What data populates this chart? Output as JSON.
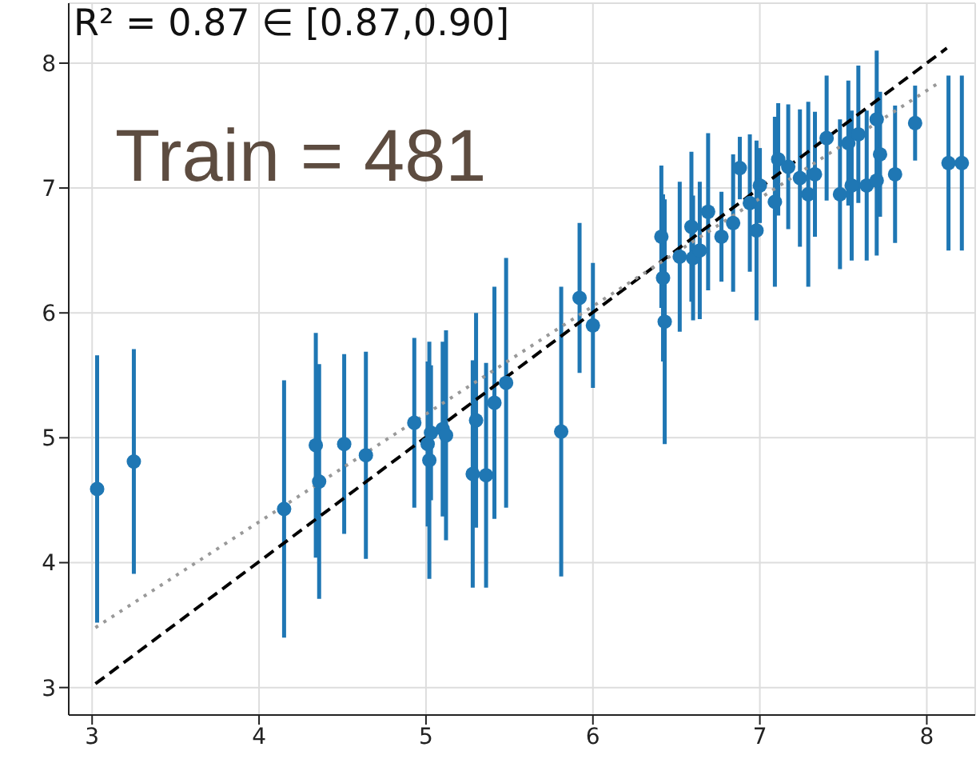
{
  "chart_data": {
    "type": "scatter",
    "annotations": [
      "R² = 0.87 ∈ [0.87,0.90]",
      "Train = 481"
    ],
    "xlim": [
      2.86,
      8.29
    ],
    "ylim": [
      2.78,
      8.48
    ],
    "xticks": [
      3,
      4,
      5,
      6,
      7,
      8
    ],
    "yticks": [
      3,
      4,
      5,
      6,
      7,
      8
    ],
    "grid": true,
    "series": [
      {
        "marker": "circle",
        "color": "#1f77b4",
        "x": [
          3.03,
          3.25,
          4.15,
          4.34,
          4.36,
          4.51,
          4.64,
          4.93,
          5.01,
          5.02,
          5.03,
          5.1,
          5.12,
          5.28,
          5.3,
          5.36,
          5.41,
          5.48,
          5.81,
          5.92,
          6.0,
          6.41,
          6.42,
          6.43,
          6.52,
          6.59,
          6.6,
          6.64,
          6.69,
          6.77,
          6.84,
          6.88,
          6.94,
          6.98,
          7.0,
          7.09,
          7.11,
          7.17,
          7.24,
          7.29,
          7.33,
          7.4,
          7.48,
          7.53,
          7.59,
          7.55,
          7.64,
          7.7,
          7.72,
          7.7,
          7.81,
          7.93,
          8.13,
          8.21
        ],
        "values": [
          4.59,
          4.81,
          4.43,
          4.94,
          4.65,
          4.95,
          4.86,
          5.12,
          4.95,
          4.82,
          5.04,
          5.07,
          5.02,
          4.71,
          5.14,
          4.7,
          5.28,
          5.44,
          5.05,
          6.12,
          5.9,
          6.61,
          6.28,
          5.93,
          6.45,
          6.69,
          6.44,
          6.5,
          6.81,
          6.61,
          6.72,
          7.16,
          6.88,
          6.66,
          7.02,
          6.89,
          7.23,
          7.17,
          7.08,
          6.95,
          7.11,
          7.4,
          6.95,
          7.36,
          7.43,
          7.02,
          7.02,
          7.55,
          7.27,
          7.06,
          7.11,
          7.52,
          7.2,
          7.2
        ],
        "errors": [
          1.07,
          0.9,
          1.03,
          0.9,
          0.94,
          0.72,
          0.83,
          0.68,
          0.66,
          0.95,
          0.54,
          0.7,
          0.84,
          0.91,
          0.86,
          0.9,
          0.93,
          1.0,
          1.16,
          0.6,
          0.5,
          0.57,
          0.67,
          0.98,
          0.6,
          0.6,
          0.5,
          0.55,
          0.63,
          0.36,
          0.55,
          0.25,
          0.55,
          0.72,
          0.3,
          0.68,
          0.45,
          0.5,
          0.55,
          0.74,
          0.5,
          0.5,
          0.6,
          0.5,
          0.55,
          0.6,
          0.6,
          0.55,
          0.5,
          0.6,
          0.55,
          0.3,
          0.7,
          0.7
        ]
      },
      {
        "type": "line",
        "color": "#000000",
        "line_style": "dashed",
        "marker": "none",
        "x": [
          3.02,
          8.12
        ],
        "values": [
          3.03,
          8.12
        ]
      },
      {
        "type": "line",
        "color": "#999999",
        "line_style": "dotted",
        "marker": "none",
        "x": [
          3.02,
          8.08
        ],
        "values": [
          3.48,
          7.85
        ]
      }
    ]
  }
}
